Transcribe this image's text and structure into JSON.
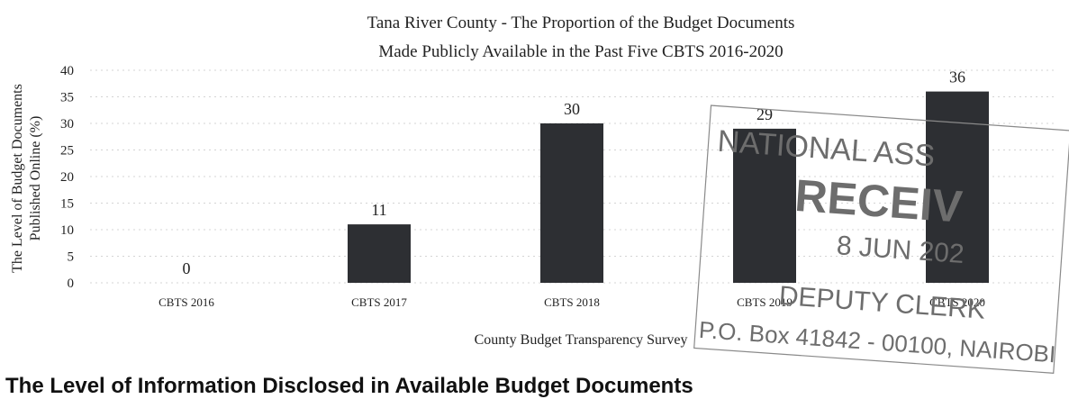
{
  "chart_data": {
    "type": "bar",
    "title": [
      "Tana River County - The Proportion of the Budget Documents",
      "Made Publicly Available in the Past Five CBTS 2016-2020"
    ],
    "categories": [
      "CBTS 2016",
      "CBTS 2017",
      "CBTS 2018",
      "CBTS 2019",
      "CBTS 2020"
    ],
    "values": [
      0,
      11,
      30,
      29,
      36
    ],
    "data_labels": [
      "0",
      "11",
      "30",
      "29",
      "36"
    ],
    "xlabel": "County Budget Transparency Survey",
    "ylabel": [
      "The Level of Budget Documents",
      "Published Online (%)"
    ],
    "ylim": [
      0,
      40
    ],
    "yticks": [
      0,
      5,
      10,
      15,
      20,
      25,
      30,
      35,
      40
    ],
    "grid": true,
    "legend": "none",
    "bar_color": "#2d2f33"
  },
  "stamp": {
    "lines": [
      "NATIONAL ASS",
      "RECEIV",
      "8 JUN 202",
      "DEPUTY CLERK",
      "P.O. Box 41842 - 00100, NAIROBI"
    ]
  },
  "section_heading": "The Level of Information Disclosed in Available Budget Documents"
}
